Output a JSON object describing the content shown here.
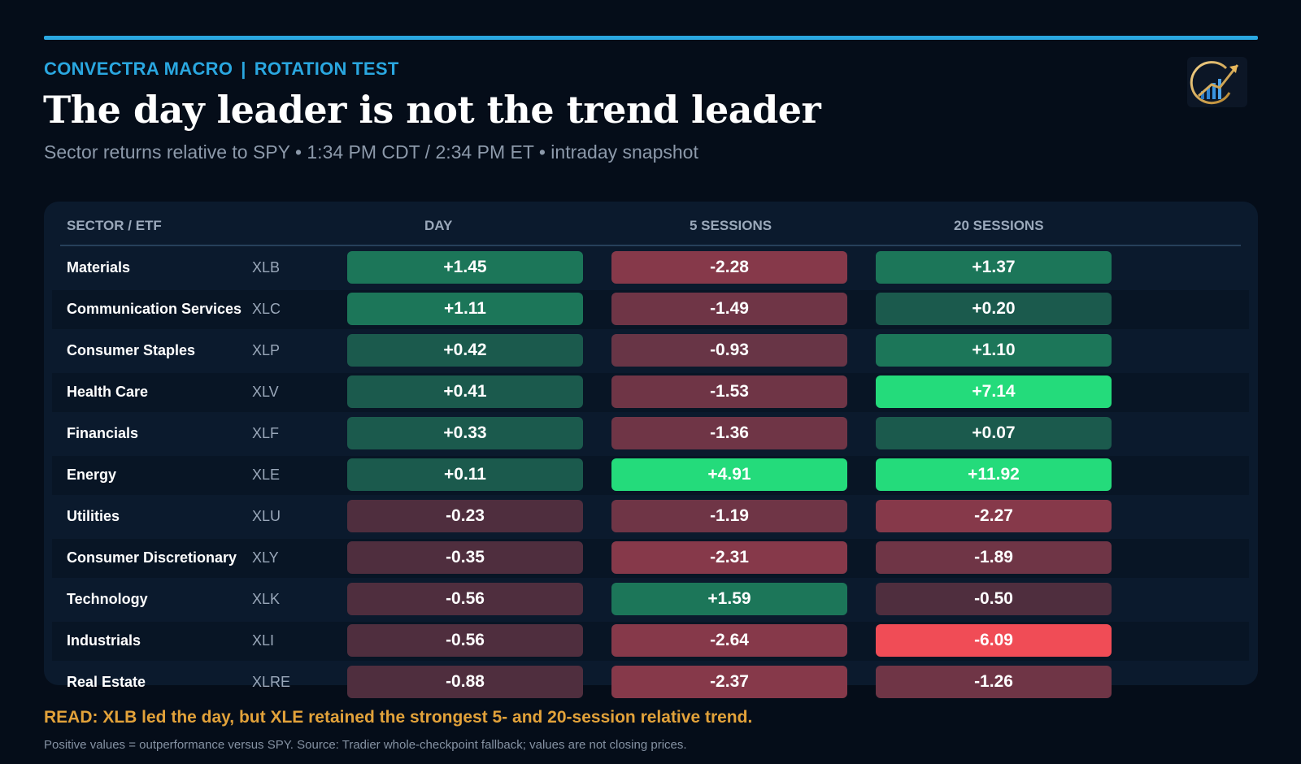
{
  "header": {
    "brand": "CONVECTRA MACRO",
    "separator": "|",
    "section": "ROTATION TEST",
    "title": "The day leader is not the trend leader",
    "subtitle": "Sector returns relative to SPY • 1:34 PM CDT / 2:34 PM ET • intraday snapshot",
    "logo_icon": "rising-chart-arrow-logo"
  },
  "table": {
    "columns": [
      "SECTOR / ETF",
      "DAY",
      "5 SESSIONS",
      "20 SESSIONS"
    ],
    "rows": [
      {
        "sector": "Materials",
        "ticker": "XLB",
        "day": "+1.45",
        "s5": "-2.28",
        "s20": "+1.37"
      },
      {
        "sector": "Communication Services",
        "ticker": "XLC",
        "day": "+1.11",
        "s5": "-1.49",
        "s20": "+0.20"
      },
      {
        "sector": "Consumer Staples",
        "ticker": "XLP",
        "day": "+0.42",
        "s5": "-0.93",
        "s20": "+1.10"
      },
      {
        "sector": "Health Care",
        "ticker": "XLV",
        "day": "+0.41",
        "s5": "-1.53",
        "s20": "+7.14"
      },
      {
        "sector": "Financials",
        "ticker": "XLF",
        "day": "+0.33",
        "s5": "-1.36",
        "s20": "+0.07"
      },
      {
        "sector": "Energy",
        "ticker": "XLE",
        "day": "+0.11",
        "s5": "+4.91",
        "s20": "+11.92"
      },
      {
        "sector": "Utilities",
        "ticker": "XLU",
        "day": "-0.23",
        "s5": "-1.19",
        "s20": "-2.27"
      },
      {
        "sector": "Consumer Discretionary",
        "ticker": "XLY",
        "day": "-0.35",
        "s5": "-2.31",
        "s20": "-1.89"
      },
      {
        "sector": "Technology",
        "ticker": "XLK",
        "day": "-0.56",
        "s5": "+1.59",
        "s20": "-0.50"
      },
      {
        "sector": "Industrials",
        "ticker": "XLI",
        "day": "-0.56",
        "s5": "-2.64",
        "s20": "-6.09"
      },
      {
        "sector": "Real Estate",
        "ticker": "XLRE",
        "day": "-0.88",
        "s5": "-2.37",
        "s20": "-1.26"
      }
    ]
  },
  "footer": {
    "read": "READ: XLB led the day, but XLE retained the strongest 5- and 20-session relative trend.",
    "note": "Positive values = outperformance versus SPY. Source: Tradier whole-checkpoint fallback; values are not closing prices."
  },
  "colors": {
    "accent": "#2aa7e0",
    "read_text": "#e2a23a",
    "positive_weak": "#1b5a4d",
    "positive_mid": "#1c7659",
    "positive_strong": "#24db7b",
    "negative_weak": "#4f2e3e",
    "negative_mid": "#6f3546",
    "negative_strong": "#f04c56"
  }
}
